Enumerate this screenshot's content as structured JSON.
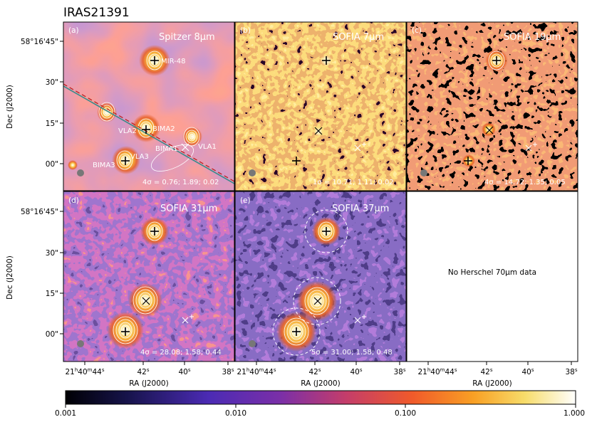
{
  "figure_title": "IRAS21391",
  "axis_labels": {
    "dec": "Dec (J2000)",
    "ra": "RA (J2000)"
  },
  "dec_ticks": [
    "58°16'45\"",
    "30\"",
    "15\"",
    "00\""
  ],
  "ra_ticks": [
    {
      "h": "21",
      "m": "40",
      "s": "44"
    },
    {
      "h": "",
      "m": "",
      "s": "42"
    },
    {
      "h": "",
      "m": "",
      "s": "40"
    },
    {
      "h": "",
      "m": "",
      "s": "38"
    }
  ],
  "panels": [
    {
      "id": "a",
      "letter": "(a)",
      "band": "Spitzer 8μm",
      "sigma": "4σ = 0.76;  1.89;  0.02",
      "labels": {
        "mir48": "MIR-48",
        "vla2": "VLA2",
        "bima2": "BIMA2",
        "bima1": "BIMA1",
        "vla1": "VLA1",
        "vla3": "VLA3",
        "bima3": "BIMA3"
      }
    },
    {
      "id": "b",
      "letter": "(b)",
      "band": "SOFIA 7μm",
      "sigma": "1σ = 10.71;  1.11;  0.02"
    },
    {
      "id": "c",
      "letter": "(c)",
      "band": "SOFIA 19μm",
      "sigma": "4σ = 14.72;  1.35;  0.05"
    },
    {
      "id": "d",
      "letter": "(d)",
      "band": "SOFIA 31μm",
      "sigma": "4σ = 28.08;  1.58;  0.44"
    },
    {
      "id": "e",
      "letter": "(e)",
      "band": "SOFIA 37μm",
      "sigma": "5σ = 31.00;  1.58;  0.48"
    }
  ],
  "empty_panel_text": "No Herschel 70μm data",
  "colorbar": {
    "ticks": [
      "0.001",
      "0.010",
      "0.100",
      "1.000"
    ],
    "scale": "log",
    "range": [
      0.001,
      1.0
    ]
  },
  "chart_data": {
    "type": "heatmap",
    "title": "IRAS21391",
    "xlabel": "RA (J2000)",
    "ylabel": "Dec (J2000)",
    "x_ticks": [
      "21h40m44s",
      "42s",
      "40s",
      "38s"
    ],
    "y_ticks": [
      "58°16'45\"",
      "30\"",
      "15\"",
      "00\""
    ],
    "colorscale": "log",
    "color_range": [
      0.001,
      1.0
    ],
    "colorbar_ticks": [
      "0.001",
      "0.010",
      "0.100",
      "1.000"
    ],
    "panels": [
      "Spitzer 8μm",
      "SOFIA 7μm",
      "SOFIA 19μm",
      "SOFIA 31μm",
      "SOFIA 37μm"
    ]
  }
}
